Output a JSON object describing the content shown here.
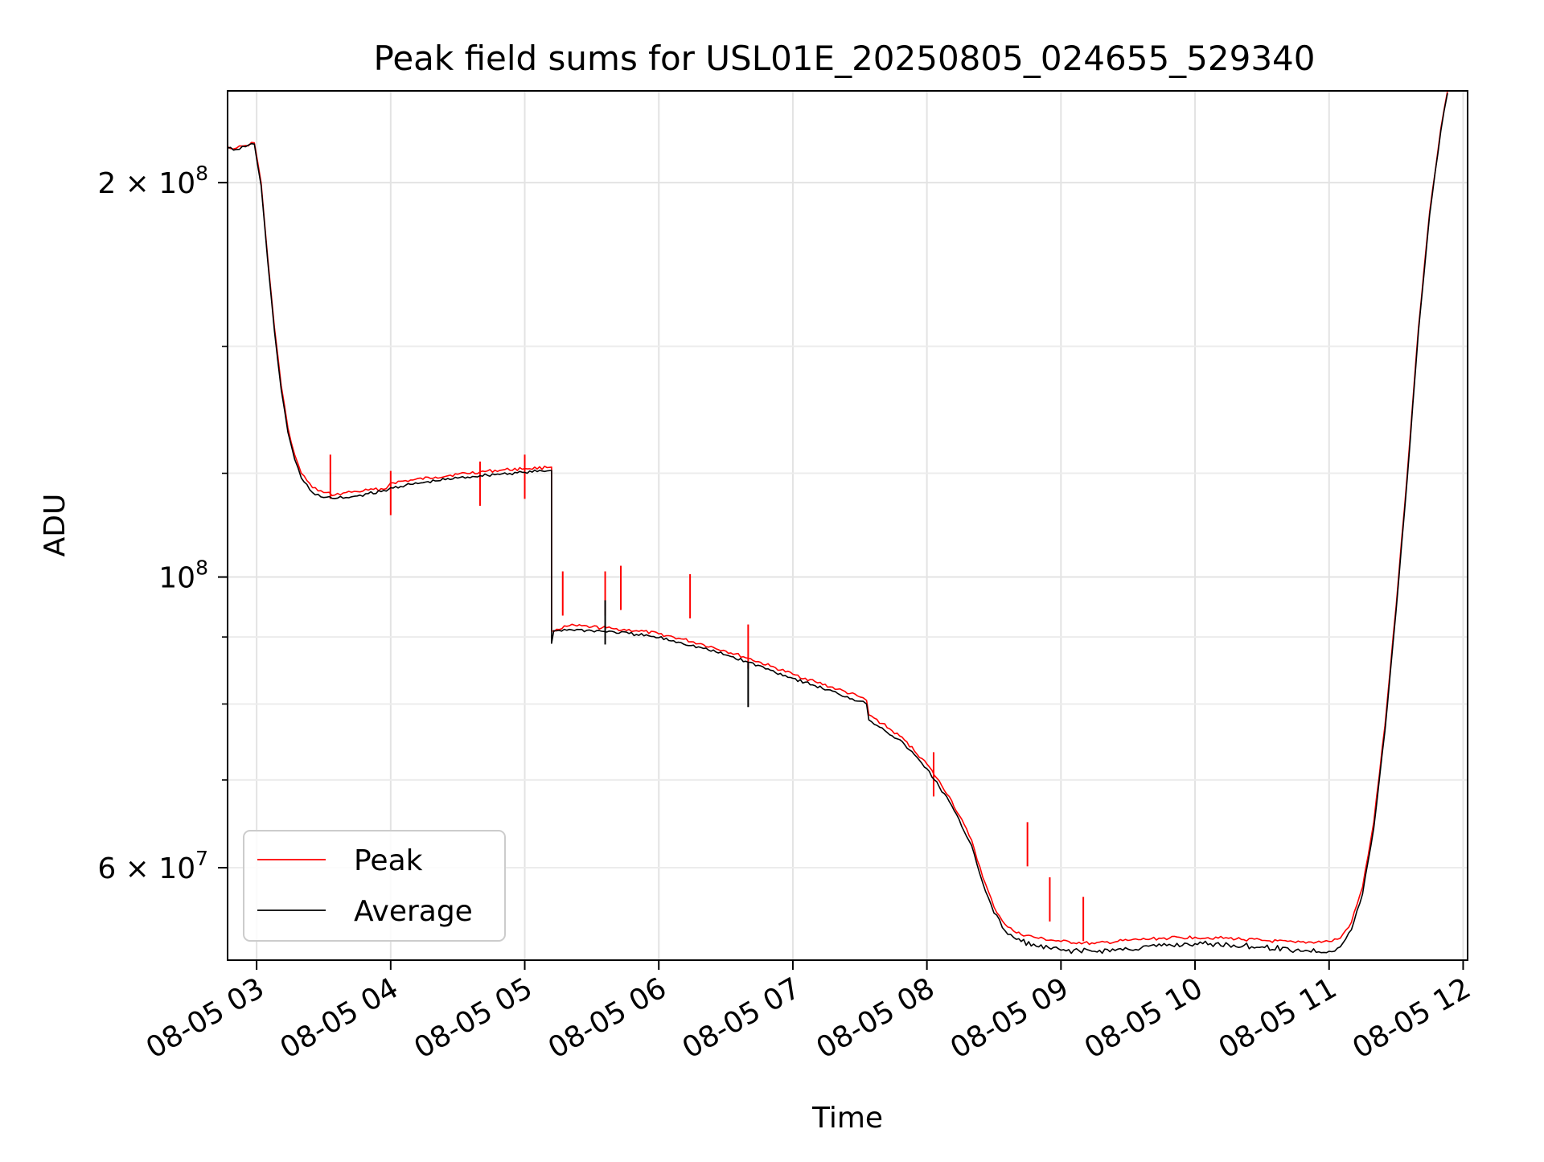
{
  "chart_data": {
    "type": "line",
    "title": "Peak field sums for USL01E_20250805_024655_529340",
    "xlabel": "Time",
    "ylabel": "ADU",
    "x_scale": "time",
    "y_scale": "log",
    "grid": true,
    "legend_position": "lower-left",
    "xlim": [
      "2025-08-05 02:47",
      "2025-08-05 12:02"
    ],
    "ylim": [
      51000000,
      235000000
    ],
    "x_ticks": [
      {
        "t": "2025-08-05 03:00",
        "label": "08-05 03"
      },
      {
        "t": "2025-08-05 04:00",
        "label": "08-05 04"
      },
      {
        "t": "2025-08-05 05:00",
        "label": "08-05 05"
      },
      {
        "t": "2025-08-05 06:00",
        "label": "08-05 06"
      },
      {
        "t": "2025-08-05 07:00",
        "label": "08-05 07"
      },
      {
        "t": "2025-08-05 08:00",
        "label": "08-05 08"
      },
      {
        "t": "2025-08-05 09:00",
        "label": "08-05 09"
      },
      {
        "t": "2025-08-05 10:00",
        "label": "08-05 10"
      },
      {
        "t": "2025-08-05 11:00",
        "label": "08-05 11"
      },
      {
        "t": "2025-08-05 12:00",
        "label": "08-05 12"
      }
    ],
    "y_major_ticks": [
      {
        "v": 200000000,
        "base": "2 × 10",
        "exp": "8"
      },
      {
        "v": 100000000,
        "base": "10",
        "exp": "8"
      },
      {
        "v": 60000000,
        "base": "6 × 10",
        "exp": "7"
      }
    ],
    "y_minor_ticks": [
      90000000,
      80000000,
      70000000,
      60000000,
      150000000,
      120000000
    ],
    "series": [
      {
        "name": "Peak",
        "color": "#ff0000",
        "points": [
          [
            "2025-08-05 02:47",
            213000000
          ],
          [
            "2025-08-05 02:51",
            212500000
          ],
          [
            "2025-08-05 02:55",
            213500000
          ],
          [
            "2025-08-05 02:59",
            214500000
          ],
          [
            "2025-08-05 03:02",
            200000000
          ],
          [
            "2025-08-05 03:05",
            175000000
          ],
          [
            "2025-08-05 03:08",
            155000000
          ],
          [
            "2025-08-05 03:11",
            140000000
          ],
          [
            "2025-08-05 03:14",
            130000000
          ],
          [
            "2025-08-05 03:17",
            124000000
          ],
          [
            "2025-08-05 03:20",
            120000000
          ],
          [
            "2025-08-05 03:25",
            117000000
          ],
          [
            "2025-08-05 03:30",
            116000000
          ],
          [
            "2025-08-05 03:35",
            115500000
          ],
          [
            "2025-08-05 03:40",
            116000000
          ],
          [
            "2025-08-05 03:45",
            116200000
          ],
          [
            "2025-08-05 03:50",
            116500000
          ],
          [
            "2025-08-05 03:58",
            116800000
          ],
          [
            "2025-08-05 04:00",
            118000000
          ],
          [
            "2025-08-05 04:10",
            118600000
          ],
          [
            "2025-08-05 04:20",
            119200000
          ],
          [
            "2025-08-05 04:30",
            119800000
          ],
          [
            "2025-08-05 04:40",
            120300000
          ],
          [
            "2025-08-05 04:50",
            120700000
          ],
          [
            "2025-08-05 05:00",
            121000000
          ],
          [
            "2025-08-05 05:10",
            121200000
          ],
          [
            "2025-08-05 05:12",
            121300000
          ],
          [
            "2025-08-05 05:12",
            91000000
          ],
          [
            "2025-08-05 05:20",
            91800000
          ],
          [
            "2025-08-05 05:30",
            91600000
          ],
          [
            "2025-08-05 05:40",
            91300000
          ],
          [
            "2025-08-05 05:50",
            91000000
          ],
          [
            "2025-08-05 06:00",
            90500000
          ],
          [
            "2025-08-05 06:10",
            89700000
          ],
          [
            "2025-08-05 06:20",
            88800000
          ],
          [
            "2025-08-05 06:30",
            87800000
          ],
          [
            "2025-08-05 06:40",
            86700000
          ],
          [
            "2025-08-05 06:50",
            85500000
          ],
          [
            "2025-08-05 07:00",
            84300000
          ],
          [
            "2025-08-05 07:10",
            83200000
          ],
          [
            "2025-08-05 07:20",
            82100000
          ],
          [
            "2025-08-05 07:30",
            81000000
          ],
          [
            "2025-08-05 07:33",
            80500000
          ],
          [
            "2025-08-05 07:34",
            78500000
          ],
          [
            "2025-08-05 07:40",
            77300000
          ],
          [
            "2025-08-05 07:50",
            75100000
          ],
          [
            "2025-08-05 08:00",
            72000000
          ],
          [
            "2025-08-05 08:10",
            68000000
          ],
          [
            "2025-08-05 08:20",
            63000000
          ],
          [
            "2025-08-05 08:25",
            59000000
          ],
          [
            "2025-08-05 08:30",
            56000000
          ],
          [
            "2025-08-05 08:35",
            54300000
          ],
          [
            "2025-08-05 08:40",
            53500000
          ],
          [
            "2025-08-05 08:50",
            53000000
          ],
          [
            "2025-08-05 09:00",
            52700000
          ],
          [
            "2025-08-05 09:15",
            52500000
          ],
          [
            "2025-08-05 09:30",
            52800000
          ],
          [
            "2025-08-05 09:45",
            53000000
          ],
          [
            "2025-08-05 10:00",
            53100000
          ],
          [
            "2025-08-05 10:15",
            53000000
          ],
          [
            "2025-08-05 10:30",
            52800000
          ],
          [
            "2025-08-05 10:45",
            52600000
          ],
          [
            "2025-08-05 11:00",
            52700000
          ],
          [
            "2025-08-05 11:05",
            53000000
          ],
          [
            "2025-08-05 11:10",
            54500000
          ],
          [
            "2025-08-05 11:15",
            58000000
          ],
          [
            "2025-08-05 11:20",
            65000000
          ],
          [
            "2025-08-05 11:25",
            77000000
          ],
          [
            "2025-08-05 11:30",
            95000000
          ],
          [
            "2025-08-05 11:35",
            120000000
          ],
          [
            "2025-08-05 11:40",
            155000000
          ],
          [
            "2025-08-05 11:45",
            190000000
          ],
          [
            "2025-08-05 11:50",
            220000000
          ],
          [
            "2025-08-05 11:53",
            235000000
          ]
        ],
        "spikes": [
          [
            "2025-08-05 03:33",
            124000000
          ],
          [
            "2025-08-05 04:00",
            120500000
          ],
          [
            "2025-08-05 04:40",
            122500000
          ],
          [
            "2025-08-05 05:00",
            124000000
          ],
          [
            "2025-08-05 05:17",
            101000000
          ],
          [
            "2025-08-05 05:36",
            101000000
          ],
          [
            "2025-08-05 05:43",
            102000000
          ],
          [
            "2025-08-05 06:14",
            100500000
          ],
          [
            "2025-08-05 06:40",
            92000000
          ],
          [
            "2025-08-05 08:03",
            73500000
          ],
          [
            "2025-08-05 08:45",
            65000000
          ],
          [
            "2025-08-05 08:55",
            59000000
          ],
          [
            "2025-08-05 09:10",
            57000000
          ]
        ]
      },
      {
        "name": "Average",
        "color": "#000000",
        "points": [
          [
            "2025-08-05 02:47",
            212500000
          ],
          [
            "2025-08-05 02:51",
            212000000
          ],
          [
            "2025-08-05 02:55",
            213000000
          ],
          [
            "2025-08-05 02:59",
            214000000
          ],
          [
            "2025-08-05 03:02",
            199000000
          ],
          [
            "2025-08-05 03:05",
            174000000
          ],
          [
            "2025-08-05 03:08",
            154000000
          ],
          [
            "2025-08-05 03:11",
            139000000
          ],
          [
            "2025-08-05 03:14",
            129000000
          ],
          [
            "2025-08-05 03:17",
            123000000
          ],
          [
            "2025-08-05 03:20",
            119000000
          ],
          [
            "2025-08-05 03:25",
            116000000
          ],
          [
            "2025-08-05 03:30",
            115000000
          ],
          [
            "2025-08-05 03:35",
            114800000
          ],
          [
            "2025-08-05 03:40",
            115000000
          ],
          [
            "2025-08-05 03:45",
            115300000
          ],
          [
            "2025-08-05 03:50",
            115800000
          ],
          [
            "2025-08-05 03:58",
            116300000
          ],
          [
            "2025-08-05 04:00",
            117000000
          ],
          [
            "2025-08-05 04:10",
            117700000
          ],
          [
            "2025-08-05 04:20",
            118400000
          ],
          [
            "2025-08-05 04:30",
            119000000
          ],
          [
            "2025-08-05 04:40",
            119500000
          ],
          [
            "2025-08-05 04:50",
            119900000
          ],
          [
            "2025-08-05 05:00",
            120200000
          ],
          [
            "2025-08-05 05:10",
            120500000
          ],
          [
            "2025-08-05 05:12",
            120600000
          ],
          [
            "2025-08-05 05:12",
            89000000
          ],
          [
            "2025-08-05 05:13",
            91000000
          ],
          [
            "2025-08-05 05:20",
            91200000
          ],
          [
            "2025-08-05 05:30",
            91000000
          ],
          [
            "2025-08-05 05:40",
            90800000
          ],
          [
            "2025-08-05 05:50",
            90400000
          ],
          [
            "2025-08-05 06:00",
            89900000
          ],
          [
            "2025-08-05 06:10",
            89100000
          ],
          [
            "2025-08-05 06:20",
            88200000
          ],
          [
            "2025-08-05 06:30",
            87200000
          ],
          [
            "2025-08-05 06:40",
            86100000
          ],
          [
            "2025-08-05 06:50",
            84900000
          ],
          [
            "2025-08-05 07:00",
            83700000
          ],
          [
            "2025-08-05 07:10",
            82600000
          ],
          [
            "2025-08-05 07:20",
            81500000
          ],
          [
            "2025-08-05 07:30",
            80400000
          ],
          [
            "2025-08-05 07:33",
            80000000
          ],
          [
            "2025-08-05 07:34",
            77800000
          ],
          [
            "2025-08-05 07:40",
            76700000
          ],
          [
            "2025-08-05 07:50",
            74500000
          ],
          [
            "2025-08-05 08:00",
            71400000
          ],
          [
            "2025-08-05 08:10",
            67400000
          ],
          [
            "2025-08-05 08:20",
            62400000
          ],
          [
            "2025-08-05 08:25",
            58400000
          ],
          [
            "2025-08-05 08:30",
            55400000
          ],
          [
            "2025-08-05 08:35",
            53700000
          ],
          [
            "2025-08-05 08:40",
            52900000
          ],
          [
            "2025-08-05 08:50",
            52200000
          ],
          [
            "2025-08-05 09:00",
            51900000
          ],
          [
            "2025-08-05 09:15",
            51800000
          ],
          [
            "2025-08-05 09:30",
            52000000
          ],
          [
            "2025-08-05 09:45",
            52300000
          ],
          [
            "2025-08-05 10:00",
            52500000
          ],
          [
            "2025-08-05 10:15",
            52400000
          ],
          [
            "2025-08-05 10:30",
            52200000
          ],
          [
            "2025-08-05 10:45",
            51900000
          ],
          [
            "2025-08-05 11:00",
            51800000
          ],
          [
            "2025-08-05 11:05",
            52200000
          ],
          [
            "2025-08-05 11:10",
            53800000
          ],
          [
            "2025-08-05 11:15",
            57300000
          ],
          [
            "2025-08-05 11:20",
            64300000
          ],
          [
            "2025-08-05 11:25",
            76300000
          ],
          [
            "2025-08-05 11:30",
            94300000
          ],
          [
            "2025-08-05 11:35",
            119000000
          ],
          [
            "2025-08-05 11:40",
            154000000
          ],
          [
            "2025-08-05 11:45",
            189000000
          ],
          [
            "2025-08-05 11:50",
            219000000
          ],
          [
            "2025-08-05 11:53",
            234000000
          ]
        ],
        "spikes": [
          [
            "2025-08-05 05:36",
            96000000
          ],
          [
            "2025-08-05 06:40",
            86000000
          ]
        ]
      }
    ]
  }
}
